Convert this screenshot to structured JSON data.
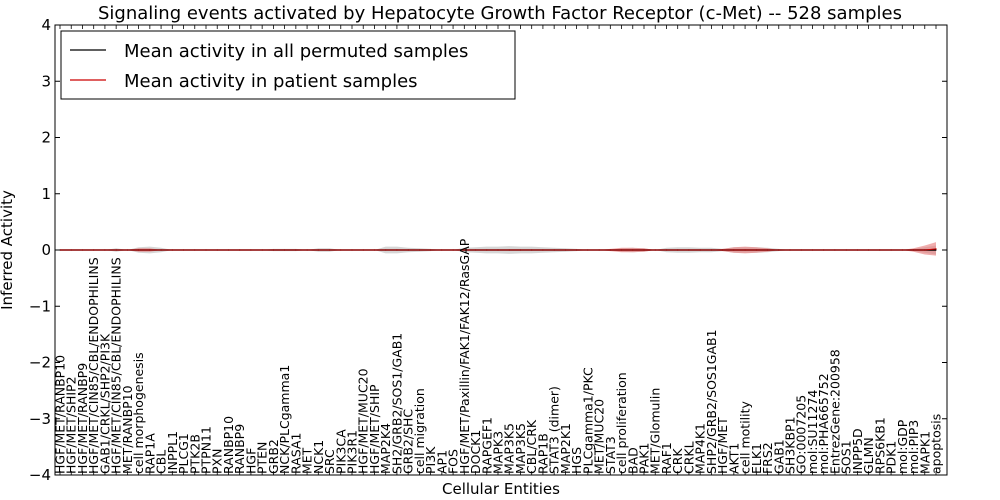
{
  "chart_data": {
    "type": "line",
    "title": "Signaling events activated by Hepatocyte Growth Factor Receptor (c-Met) -- 528 samples",
    "xlabel": "Cellular Entities",
    "ylabel": "Inferred Activity",
    "ylim": [
      -4,
      4
    ],
    "yticks": [
      -4,
      -3,
      -2,
      -1,
      0,
      1,
      2,
      3,
      4
    ],
    "ytick_labels": [
      "−4",
      "−3",
      "−2",
      "−1",
      "0",
      "1",
      "2",
      "3",
      "4"
    ],
    "legend": {
      "position": "top-left",
      "entries": [
        {
          "label": "Mean activity in all permuted samples",
          "color": "#000000"
        },
        {
          "label": "Mean activity in patient samples",
          "color": "#cc0000"
        }
      ]
    },
    "categories": [
      "HGF/MET/RANBP10",
      "HGF/MET/SHIP2",
      "HGF/MET/RANBP9",
      "HGF/MET/CIN85/CBL/ENDOPHILINS",
      "GAB1/CRKL/SHP2/PI3K",
      "HGF/MET/CIN85/CBL/ENDOPHILINS",
      "MET/RANBP10",
      "cell morphogenesis",
      "RAP1A",
      "CBL",
      "INPPL1",
      "PLCG1",
      "PTK2B",
      "PTPN11",
      "PXN",
      "RANBP10",
      "RANBP9",
      "HGF",
      "PTEN",
      "GRB2",
      "NCK/PLCgamma1",
      "RASA1",
      "MET",
      "NCK1",
      "SRC",
      "PIK3CA",
      "PIK3R1",
      "HGF/MET/MUC20",
      "HGF/MET/SHIP",
      "MAP2K4",
      "SH2/GRB2/SOS1/GAB1",
      "GRB2/SHC",
      "cell migration",
      "PI3K",
      "AP1",
      "FOS",
      "HGF/MET/Paxillin/FAK1/FAK12/RasGAP",
      "DOCK1",
      "RAPGEF1",
      "MAPK3",
      "MAP3K5",
      "MAP3K5",
      "CBL/CRK",
      "RAP1B",
      "STAT3 (dimer)",
      "MAP2K1",
      "HGS",
      "PLCgamma1/PKC",
      "MET/MUC20",
      "STAT3",
      "cell proliferation",
      "BAD",
      "PAK1",
      "MET/Glomulin",
      "RAF1",
      "CRK",
      "CRKL",
      "MAP4K1",
      "SHP2/GRB2/SOS1GAB1",
      "HGF/MET",
      "AKT1",
      "cell motility",
      "ELK1",
      "FRS2",
      "GAB1",
      "SH3KBP1",
      "GO:0007205",
      "mol:SU11274",
      "mol:PHA665752",
      "EntrezGene:200958",
      "SOS1",
      "INPP5D",
      "GLMN",
      "RPS6KB1",
      "PDK1",
      "mol:GDP",
      "mol:PIP3",
      "MAPK1",
      "apoptosis"
    ],
    "series": [
      {
        "name": "Mean activity in all permuted samples",
        "color": "#000000",
        "values": [
          0,
          0,
          0,
          0,
          0,
          0,
          0,
          0,
          0,
          0,
          0,
          0,
          0,
          0,
          0,
          0,
          0,
          0,
          0,
          0,
          0,
          0,
          0,
          0,
          0,
          0,
          0,
          0,
          0,
          0,
          0,
          0,
          0,
          0,
          0,
          0,
          0,
          0,
          0,
          0,
          0,
          0,
          0,
          0,
          0,
          0,
          0,
          0,
          0,
          0,
          0,
          0,
          0,
          0,
          0,
          0,
          0,
          0,
          0,
          0,
          0,
          0,
          0,
          0,
          0,
          0,
          0,
          0,
          0,
          0,
          0,
          0,
          0,
          0,
          0,
          0,
          0,
          0,
          0
        ]
      },
      {
        "name": "Mean activity in patient samples",
        "color": "#cc0000",
        "values": [
          0,
          0,
          0,
          0,
          0,
          0,
          0,
          0,
          0,
          0,
          0,
          0,
          0,
          0,
          0,
          0,
          0,
          0,
          0,
          0,
          0,
          0,
          0,
          0,
          0,
          0,
          0,
          0,
          0,
          0,
          0,
          0,
          0,
          0,
          0,
          0,
          0,
          0,
          0,
          0,
          0,
          0,
          0,
          0,
          0,
          0,
          0,
          0,
          0,
          0,
          0,
          0,
          0,
          0,
          0,
          0,
          0,
          0,
          0,
          0,
          0,
          0,
          0,
          0,
          0,
          0,
          0,
          0,
          0,
          0,
          0,
          0,
          0,
          0,
          0,
          0,
          0,
          0,
          0.02
        ]
      }
    ],
    "bands": [
      {
        "name": "permuted spread",
        "color": "#c8c8c8",
        "halfwidth": [
          0,
          0,
          0,
          0,
          0,
          0.03,
          0,
          0.05,
          0.06,
          0.04,
          0,
          0,
          0,
          0,
          0,
          0,
          0,
          0,
          0,
          0.02,
          0.02,
          0.02,
          0,
          0.03,
          0.03,
          0,
          0,
          0,
          0,
          0.06,
          0.06,
          0.04,
          0.03,
          0.02,
          0,
          0,
          0.04,
          0.05,
          0.06,
          0.06,
          0.07,
          0.06,
          0.06,
          0.05,
          0.04,
          0.03,
          0.02,
          0,
          0,
          0,
          0.03,
          0.04,
          0.03,
          0,
          0.04,
          0.05,
          0.05,
          0.04,
          0.04,
          0.02,
          0.05,
          0.05,
          0.05,
          0.04,
          0.02,
          0,
          0,
          0,
          0,
          0,
          0,
          0,
          0,
          0,
          0,
          0,
          0.02,
          0.05,
          0.08
        ]
      },
      {
        "name": "patient spread",
        "color": "#e87878",
        "halfwidth": [
          0,
          0,
          0,
          0,
          0,
          0,
          0,
          0.03,
          0.03,
          0,
          0,
          0,
          0,
          0,
          0,
          0,
          0,
          0,
          0,
          0,
          0,
          0,
          0,
          0,
          0,
          0,
          0,
          0,
          0,
          0,
          0,
          0,
          0,
          0,
          0,
          0,
          0,
          0,
          0,
          0,
          0,
          0,
          0,
          0,
          0,
          0,
          0,
          0,
          0,
          0.02,
          0.04,
          0.04,
          0.03,
          0,
          0,
          0,
          0,
          0,
          0,
          0.02,
          0.05,
          0.06,
          0.05,
          0.03,
          0,
          0,
          0,
          0,
          0,
          0,
          0,
          0,
          0,
          0,
          0,
          0,
          0.03,
          0.08,
          0.12
        ]
      }
    ]
  }
}
